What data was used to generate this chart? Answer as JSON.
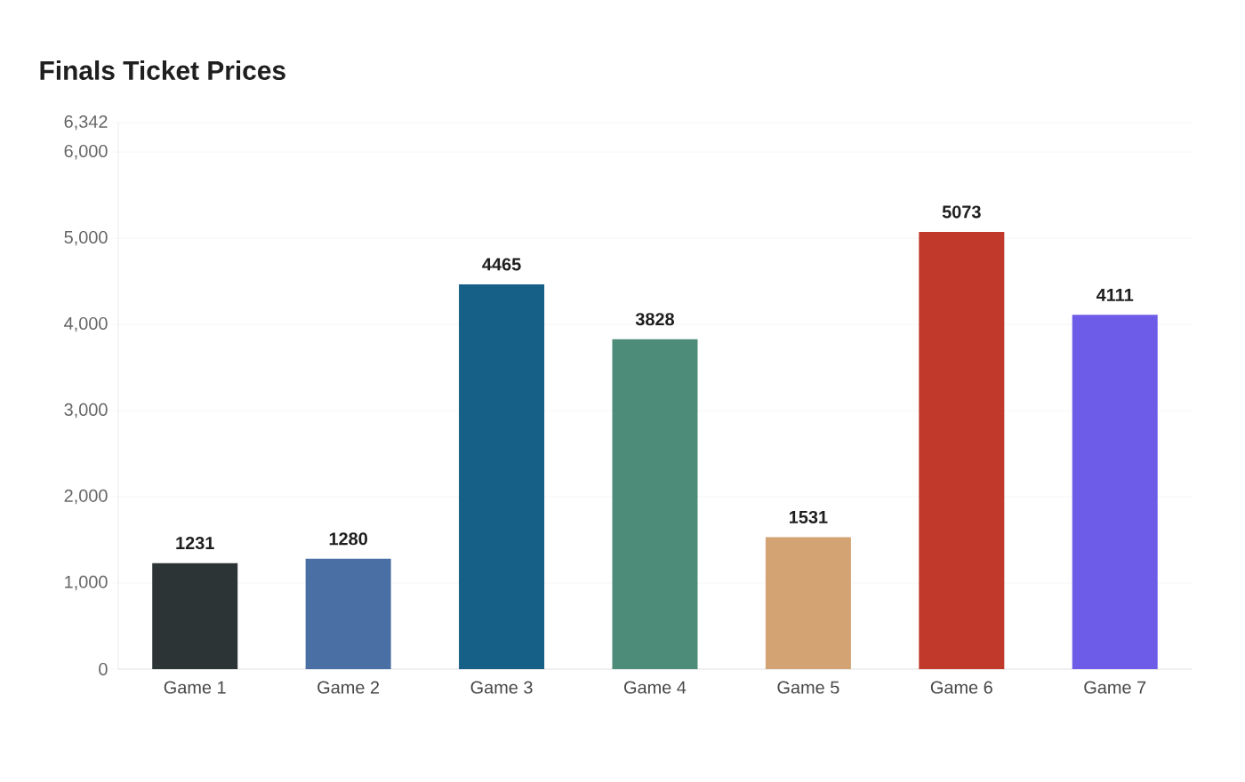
{
  "chart_data": {
    "type": "bar",
    "title": "Finals Ticket Prices",
    "categories": [
      "Game 1",
      "Game 2",
      "Game 3",
      "Game 4",
      "Game 5",
      "Game 6",
      "Game 7"
    ],
    "values": [
      1231,
      1280,
      4465,
      3828,
      1531,
      5073,
      4111
    ],
    "colors": [
      "#2d3436",
      "#4a6fa5",
      "#166088",
      "#4e8c7a",
      "#d4a373",
      "#c0392b",
      "#6c5ce7"
    ],
    "ylim": [
      0,
      6342
    ],
    "yticks": [
      {
        "value": 0,
        "label": "0"
      },
      {
        "value": 1000,
        "label": "1,000"
      },
      {
        "value": 2000,
        "label": "2,000"
      },
      {
        "value": 3000,
        "label": "3,000"
      },
      {
        "value": 4000,
        "label": "4,000"
      },
      {
        "value": 5000,
        "label": "5,000"
      },
      {
        "value": 6000,
        "label": "6,000"
      },
      {
        "value": 6342,
        "label": "6,342"
      }
    ],
    "grid": "y",
    "data_labels": true
  }
}
